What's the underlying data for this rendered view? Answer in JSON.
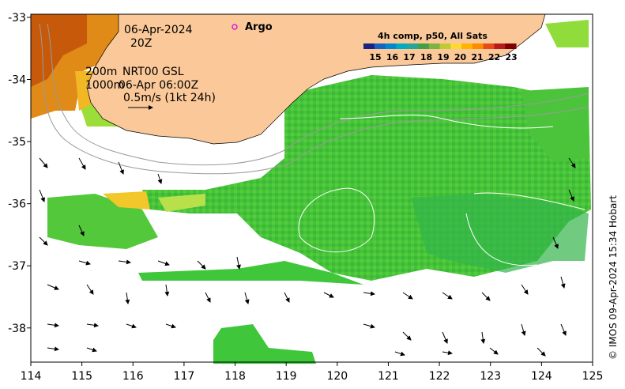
{
  "map": {
    "lon_ticks": [
      "114",
      "115",
      "116",
      "117",
      "118",
      "119",
      "120",
      "121",
      "122",
      "123",
      "124",
      "125"
    ],
    "lat_ticks": [
      "-33",
      "-34",
      "-35",
      "-36",
      "-37",
      "-38"
    ],
    "lon_range": [
      114,
      125
    ],
    "lat_range": [
      -38.55,
      -32.95
    ]
  },
  "annotations": {
    "date": "06-Apr-2024",
    "time": "20Z",
    "depth_200": "200m",
    "depth_1000": "1000m",
    "product": "NRT00 GSL",
    "product_time": "06-Apr 06:00Z",
    "scale_label": "0.5m/s (1kt 24h)",
    "argo_label": "Argo",
    "credit": "© IMOS 09-Apr-2024 15:34 Hobart"
  },
  "colorbar": {
    "title": "4h comp, p50, All Sats",
    "ticks": [
      "15",
      "16",
      "17",
      "18",
      "19",
      "20",
      "21",
      "22",
      "23"
    ],
    "colors": [
      "#1a237e",
      "#1565c0",
      "#0288d1",
      "#00acc1",
      "#26a69a",
      "#43a047",
      "#7cb342",
      "#c0ca33",
      "#fdd835",
      "#ffb300",
      "#fb8c00",
      "#e64a19",
      "#b71c1c",
      "#7f0000"
    ]
  },
  "colors": {
    "land": "#fbc999",
    "sst_green": "#3fc63a",
    "sst_light": "#8fdc3a",
    "sst_warm": "#f4c21c",
    "sst_hot": "#d9620c"
  }
}
